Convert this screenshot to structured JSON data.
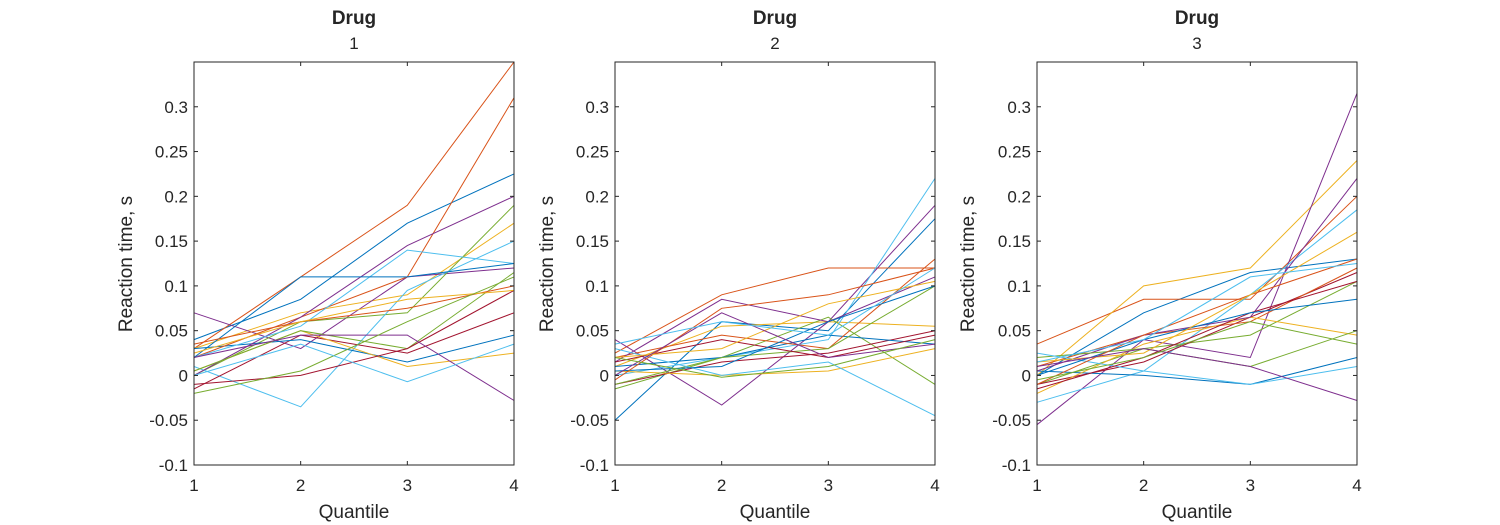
{
  "chart_data": [
    {
      "type": "line",
      "title": "Drug",
      "subtitle": "1",
      "xlabel": "Quantile",
      "ylabel": "Reaction time, s",
      "x": [
        1,
        2,
        3,
        4
      ],
      "xlim": [
        1,
        4
      ],
      "ylim": [
        -0.1,
        0.35
      ],
      "xticks": [
        "1",
        "2",
        "3",
        "4"
      ],
      "yticks": [
        "-0.1",
        "-0.05",
        "0",
        "0.05",
        "0.1",
        "0.15",
        "0.2",
        "0.25",
        "0.3"
      ],
      "ytick_values": [
        -0.1,
        -0.05,
        0,
        0.05,
        0.1,
        0.15,
        0.2,
        0.25,
        0.3
      ],
      "grid": false,
      "series": [
        {
          "color": "#0072BD",
          "values": [
            0.04,
            0.085,
            0.17,
            0.225
          ]
        },
        {
          "color": "#D95319",
          "values": [
            0.03,
            0.11,
            0.19,
            0.35
          ]
        },
        {
          "color": "#EDB120",
          "values": [
            0.03,
            0.07,
            0.09,
            0.17
          ]
        },
        {
          "color": "#7E2F8E",
          "values": [
            0.07,
            0.03,
            0.11,
            0.12
          ]
        },
        {
          "color": "#77AC30",
          "values": [
            0.0,
            0.06,
            0.07,
            0.19
          ]
        },
        {
          "color": "#4DBEEE",
          "values": [
            0.01,
            -0.035,
            0.095,
            0.15
          ]
        },
        {
          "color": "#A2142F",
          "values": [
            -0.015,
            0.045,
            0.025,
            0.07
          ]
        },
        {
          "color": "#0072BD",
          "values": [
            0.03,
            0.04,
            0.015,
            0.045
          ]
        },
        {
          "color": "#D95319",
          "values": [
            0.02,
            0.065,
            0.11,
            0.31
          ]
        },
        {
          "color": "#EDB120",
          "values": [
            0.005,
            0.05,
            0.01,
            0.025
          ]
        },
        {
          "color": "#7E2F8E",
          "values": [
            0.0,
            0.065,
            0.145,
            0.2
          ]
        },
        {
          "color": "#77AC30",
          "values": [
            0.005,
            0.05,
            0.03,
            0.115
          ]
        },
        {
          "color": "#4DBEEE",
          "values": [
            0.02,
            0.055,
            0.14,
            0.125
          ]
        },
        {
          "color": "#A2142F",
          "values": [
            -0.01,
            0.0,
            0.03,
            0.095
          ]
        },
        {
          "color": "#0072BD",
          "values": [
            0.02,
            0.11,
            0.11,
            0.125
          ]
        },
        {
          "color": "#D95319",
          "values": [
            0.035,
            0.06,
            0.075,
            0.1
          ]
        },
        {
          "color": "#EDB120",
          "values": [
            0.025,
            0.06,
            0.085,
            0.095
          ]
        },
        {
          "color": "#7E2F8E",
          "values": [
            0.02,
            0.045,
            0.045,
            -0.028
          ]
        },
        {
          "color": "#77AC30",
          "values": [
            -0.02,
            0.005,
            0.06,
            0.11
          ]
        },
        {
          "color": "#4DBEEE",
          "values": [
            0.0,
            0.035,
            -0.007,
            0.035
          ]
        }
      ]
    },
    {
      "type": "line",
      "title": "Drug",
      "subtitle": "2",
      "xlabel": "Quantile",
      "ylabel": "Reaction time, s",
      "x": [
        1,
        2,
        3,
        4
      ],
      "xlim": [
        1,
        4
      ],
      "ylim": [
        -0.1,
        0.35
      ],
      "xticks": [
        "1",
        "2",
        "3",
        "4"
      ],
      "yticks": [
        "-0.1",
        "-0.05",
        "0",
        "0.05",
        "0.1",
        "0.15",
        "0.2",
        "0.25",
        "0.3"
      ],
      "ytick_values": [
        -0.1,
        -0.05,
        0,
        0.05,
        0.1,
        0.15,
        0.2,
        0.25,
        0.3
      ],
      "grid": false,
      "series": [
        {
          "color": "#0072BD",
          "values": [
            -0.05,
            0.06,
            0.05,
            0.175
          ]
        },
        {
          "color": "#D95319",
          "values": [
            0.025,
            0.09,
            0.12,
            0.12
          ]
        },
        {
          "color": "#EDB120",
          "values": [
            0.01,
            0.055,
            0.06,
            0.055
          ]
        },
        {
          "color": "#7E2F8E",
          "values": [
            0.04,
            -0.033,
            0.06,
            0.19
          ]
        },
        {
          "color": "#77AC30",
          "values": [
            -0.015,
            0.02,
            0.065,
            -0.01
          ]
        },
        {
          "color": "#4DBEEE",
          "values": [
            0.0,
            0.02,
            0.04,
            0.22
          ]
        },
        {
          "color": "#A2142F",
          "values": [
            -0.01,
            0.015,
            0.025,
            0.05
          ]
        },
        {
          "color": "#0072BD",
          "values": [
            0.01,
            0.02,
            0.045,
            0.035
          ]
        },
        {
          "color": "#D95319",
          "values": [
            0.02,
            0.045,
            0.03,
            0.13
          ]
        },
        {
          "color": "#EDB120",
          "values": [
            0.005,
            0.0,
            0.005,
            0.03
          ]
        },
        {
          "color": "#7E2F8E",
          "values": [
            0.015,
            0.085,
            0.06,
            0.11
          ]
        },
        {
          "color": "#77AC30",
          "values": [
            -0.01,
            0.02,
            0.03,
            0.1
          ]
        },
        {
          "color": "#4DBEEE",
          "values": [
            0.03,
            0.0,
            0.015,
            -0.045
          ]
        },
        {
          "color": "#A2142F",
          "values": [
            0.015,
            0.04,
            0.02,
            0.045
          ]
        },
        {
          "color": "#0072BD",
          "values": [
            0.005,
            0.01,
            0.06,
            0.1
          ]
        },
        {
          "color": "#D95319",
          "values": [
            -0.005,
            0.075,
            0.09,
            0.12
          ]
        },
        {
          "color": "#EDB120",
          "values": [
            0.02,
            0.03,
            0.08,
            0.105
          ]
        },
        {
          "color": "#7E2F8E",
          "values": [
            0.0,
            0.07,
            0.02,
            0.035
          ]
        },
        {
          "color": "#77AC30",
          "values": [
            0.02,
            -0.002,
            0.01,
            0.04
          ]
        },
        {
          "color": "#4DBEEE",
          "values": [
            0.035,
            0.06,
            0.045,
            0.12
          ]
        }
      ]
    },
    {
      "type": "line",
      "title": "Drug",
      "subtitle": "3",
      "xlabel": "Quantile",
      "ylabel": "Reaction time, s",
      "x": [
        1,
        2,
        3,
        4
      ],
      "xlim": [
        1,
        4
      ],
      "ylim": [
        -0.1,
        0.35
      ],
      "xticks": [
        "1",
        "2",
        "3",
        "4"
      ],
      "yticks": [
        "-0.1",
        "-0.05",
        "0",
        "0.05",
        "0.1",
        "0.15",
        "0.2",
        "0.25",
        "0.3"
      ],
      "ytick_values": [
        -0.1,
        -0.05,
        0,
        0.05,
        0.1,
        0.15,
        0.2,
        0.25,
        0.3
      ],
      "grid": false,
      "series": [
        {
          "color": "#0072BD",
          "values": [
            0.0,
            0.07,
            0.115,
            0.13
          ]
        },
        {
          "color": "#D95319",
          "values": [
            0.035,
            0.085,
            0.085,
            0.2
          ]
        },
        {
          "color": "#EDB120",
          "values": [
            0.0,
            0.1,
            0.12,
            0.24
          ]
        },
        {
          "color": "#7E2F8E",
          "values": [
            -0.055,
            0.04,
            0.02,
            0.315
          ]
        },
        {
          "color": "#77AC30",
          "values": [
            -0.01,
            0.03,
            0.045,
            0.105
          ]
        },
        {
          "color": "#4DBEEE",
          "values": [
            -0.03,
            0.005,
            0.09,
            0.185
          ]
        },
        {
          "color": "#A2142F",
          "values": [
            -0.01,
            0.015,
            0.065,
            0.115
          ]
        },
        {
          "color": "#0072BD",
          "values": [
            0.005,
            0.0,
            -0.01,
            0.02
          ]
        },
        {
          "color": "#D95319",
          "values": [
            0.01,
            0.045,
            0.06,
            0.12
          ]
        },
        {
          "color": "#EDB120",
          "values": [
            -0.02,
            0.035,
            0.065,
            0.045
          ]
        },
        {
          "color": "#7E2F8E",
          "values": [
            0.005,
            0.045,
            0.065,
            0.22
          ]
        },
        {
          "color": "#77AC30",
          "values": [
            0.02,
            0.03,
            0.01,
            0.05
          ]
        },
        {
          "color": "#4DBEEE",
          "values": [
            0.025,
            0.005,
            -0.01,
            0.01
          ]
        },
        {
          "color": "#A2142F",
          "values": [
            -0.015,
            0.02,
            0.07,
            0.105
          ]
        },
        {
          "color": "#0072BD",
          "values": [
            0.0,
            0.04,
            0.07,
            0.085
          ]
        },
        {
          "color": "#D95319",
          "values": [
            -0.01,
            0.045,
            0.09,
            0.13
          ]
        },
        {
          "color": "#EDB120",
          "values": [
            0.015,
            0.025,
            0.09,
            0.16
          ]
        },
        {
          "color": "#7E2F8E",
          "values": [
            0.01,
            0.03,
            0.01,
            -0.028
          ]
        },
        {
          "color": "#77AC30",
          "values": [
            -0.005,
            0.02,
            0.06,
            0.035
          ]
        },
        {
          "color": "#4DBEEE",
          "values": [
            0.015,
            0.04,
            0.11,
            0.125
          ]
        }
      ]
    }
  ]
}
